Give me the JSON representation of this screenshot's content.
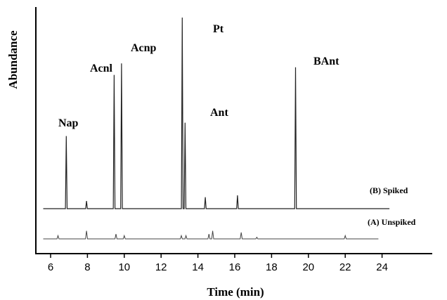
{
  "chart_data": {
    "type": "line",
    "title": "",
    "xlabel": "Time (min)",
    "ylabel": "Abundance",
    "xlim": [
      5.5,
      24.5
    ],
    "x_ticks": [
      "6",
      "8",
      "10",
      "12",
      "14",
      "16",
      "18",
      "20",
      "22",
      "24"
    ],
    "grid": false,
    "series": [
      {
        "name": "(B)  Spiked",
        "baseline": 0,
        "x_range": [
          5.6,
          24.4
        ],
        "peaks": [
          {
            "x": 6.85,
            "y": 38
          },
          {
            "x": 7.95,
            "y": 4
          },
          {
            "x": 9.45,
            "y": 70
          },
          {
            "x": 9.85,
            "y": 76
          },
          {
            "x": 13.15,
            "y": 100
          },
          {
            "x": 13.3,
            "y": 45
          },
          {
            "x": 14.4,
            "y": 6
          },
          {
            "x": 16.15,
            "y": 7
          },
          {
            "x": 19.3,
            "y": 74
          }
        ]
      },
      {
        "name": "(A)  Unspiked",
        "baseline": 0,
        "x_range": [
          5.6,
          23.8
        ],
        "peaks": [
          {
            "x": 6.4,
            "y": 2
          },
          {
            "x": 7.95,
            "y": 5
          },
          {
            "x": 9.55,
            "y": 3
          },
          {
            "x": 10.0,
            "y": 2
          },
          {
            "x": 13.1,
            "y": 2
          },
          {
            "x": 13.35,
            "y": 2
          },
          {
            "x": 14.6,
            "y": 3
          },
          {
            "x": 14.8,
            "y": 5
          },
          {
            "x": 16.35,
            "y": 4
          },
          {
            "x": 17.2,
            "y": 1
          },
          {
            "x": 22.0,
            "y": 2
          }
        ]
      }
    ],
    "annotations": [
      {
        "text": "Nap",
        "x": 6.85
      },
      {
        "text": "Acnl",
        "x": 9.45
      },
      {
        "text": "Acnp",
        "x": 9.85
      },
      {
        "text": "Pt",
        "x": 13.15
      },
      {
        "text": "Ant",
        "x": 13.3
      },
      {
        "text": "BAnt",
        "x": 19.3
      }
    ]
  }
}
